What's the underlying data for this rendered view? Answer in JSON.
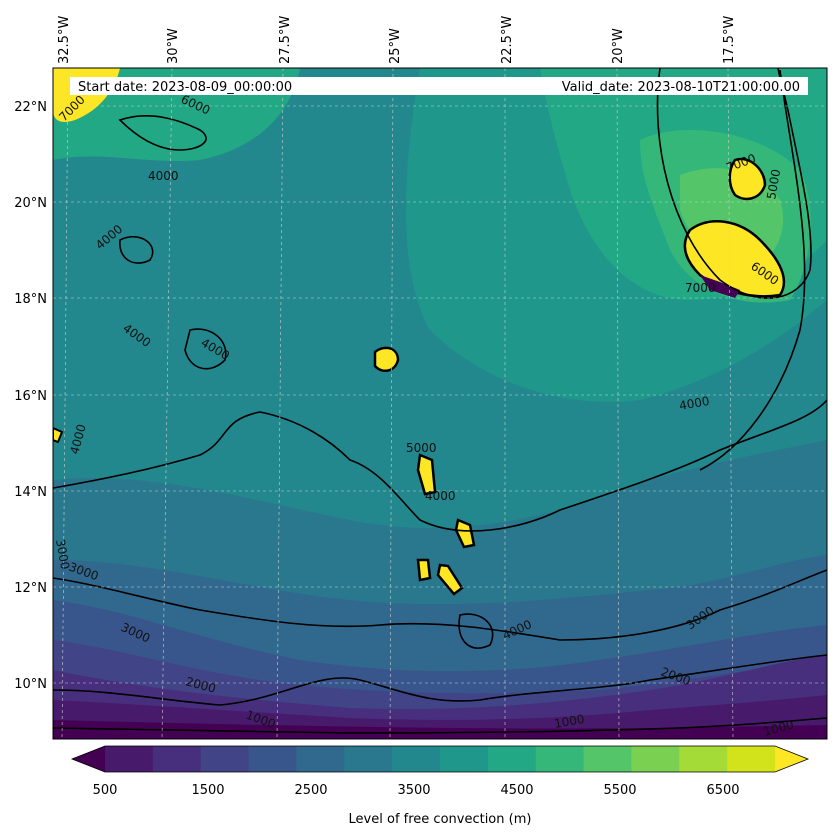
{
  "header": {
    "start_date": "Start date: 2023-08-09_00:00:00",
    "valid_date": "Valid_date: 2023-08-10T21:00:00.00"
  },
  "lon_labels": [
    "32.5°W",
    "30°W",
    "27.5°W",
    "25°W",
    "22.5°W",
    "20°W",
    "17.5°W"
  ],
  "lat_labels": [
    "22°N",
    "20°N",
    "18°N",
    "16°N",
    "14°N",
    "12°N",
    "10°N"
  ],
  "contour_labels": [
    "4000",
    "4000",
    "4000",
    "4000",
    "4000",
    "4000",
    "4000",
    "4000",
    "3000",
    "3000",
    "3000",
    "3000",
    "2000",
    "2000",
    "1000",
    "1000",
    "1000",
    "5000",
    "5000",
    "6000",
    "6000",
    "7000",
    "7000",
    "7000"
  ],
  "colorbar": {
    "tick_labels": [
      "500",
      "1500",
      "2500",
      "3500",
      "4500",
      "5500",
      "6500"
    ],
    "label": "Level of free convection (m)",
    "colors": [
      "#440154",
      "#481a6c",
      "#472f7d",
      "#414487",
      "#39568c",
      "#31688e",
      "#2a788e",
      "#23888e",
      "#1f988b",
      "#22a884",
      "#35b779",
      "#54c568",
      "#7ad151",
      "#a5db36",
      "#d2e21b",
      "#fde725"
    ]
  }
}
